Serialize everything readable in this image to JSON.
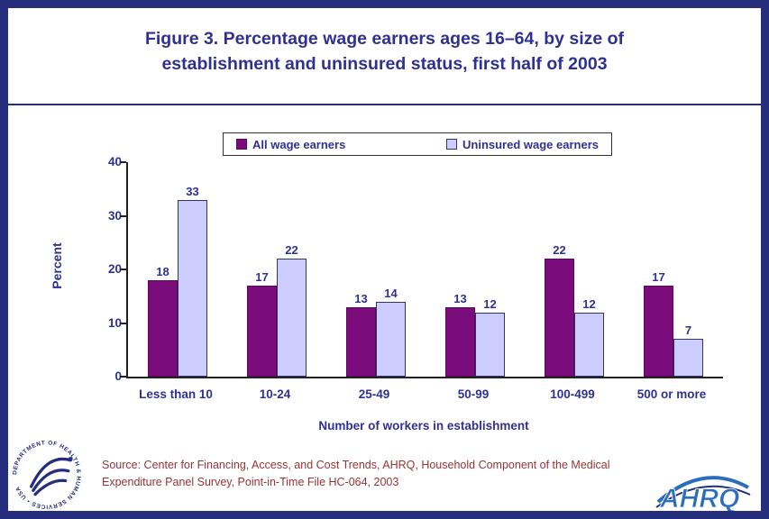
{
  "chart_data": {
    "type": "bar",
    "title": "Figure 3. Percentage wage earners ages 16–64, by size of establishment and uninsured status, first half of 2003",
    "categories": [
      "Less than 10",
      "10-24",
      "25-49",
      "50-99",
      "100-499",
      "500 or more"
    ],
    "series": [
      {
        "name": "All wage earners",
        "color": "#7B0C7B",
        "border": "#5A085A",
        "values": [
          18,
          17,
          13,
          13,
          22,
          17
        ]
      },
      {
        "name": "Uninsured wage earners",
        "color": "#CCCCFF",
        "border": "#333366",
        "values": [
          33,
          22,
          14,
          12,
          12,
          7
        ]
      }
    ],
    "xlabel": "Number of workers in establishment",
    "ylabel": "Percent",
    "ylim": [
      0,
      40
    ],
    "yticks": [
      0,
      10,
      20,
      30,
      40
    ],
    "grid": false,
    "legend_position": "top-center"
  },
  "source_text": "Source: Center for Financing, Access, and Cost Trends, AHRQ, Household Component of the Medical Expenditure Panel Survey, Point-in-Time File HC-064, 2003",
  "logos": {
    "hhs_circle_text": "DEPARTMENT OF HEALTH & HUMAN SERVICES • USA",
    "ahrq_text": "AHRQ"
  },
  "colors": {
    "frame": "#252E7C",
    "heading_text": "#2E3192",
    "bar_all_wage_earners": "#7B0C7B",
    "bar_uninsured": "#CCCCFF",
    "source_text": "#993333",
    "ahrq_blue": "#2A6EBD"
  }
}
